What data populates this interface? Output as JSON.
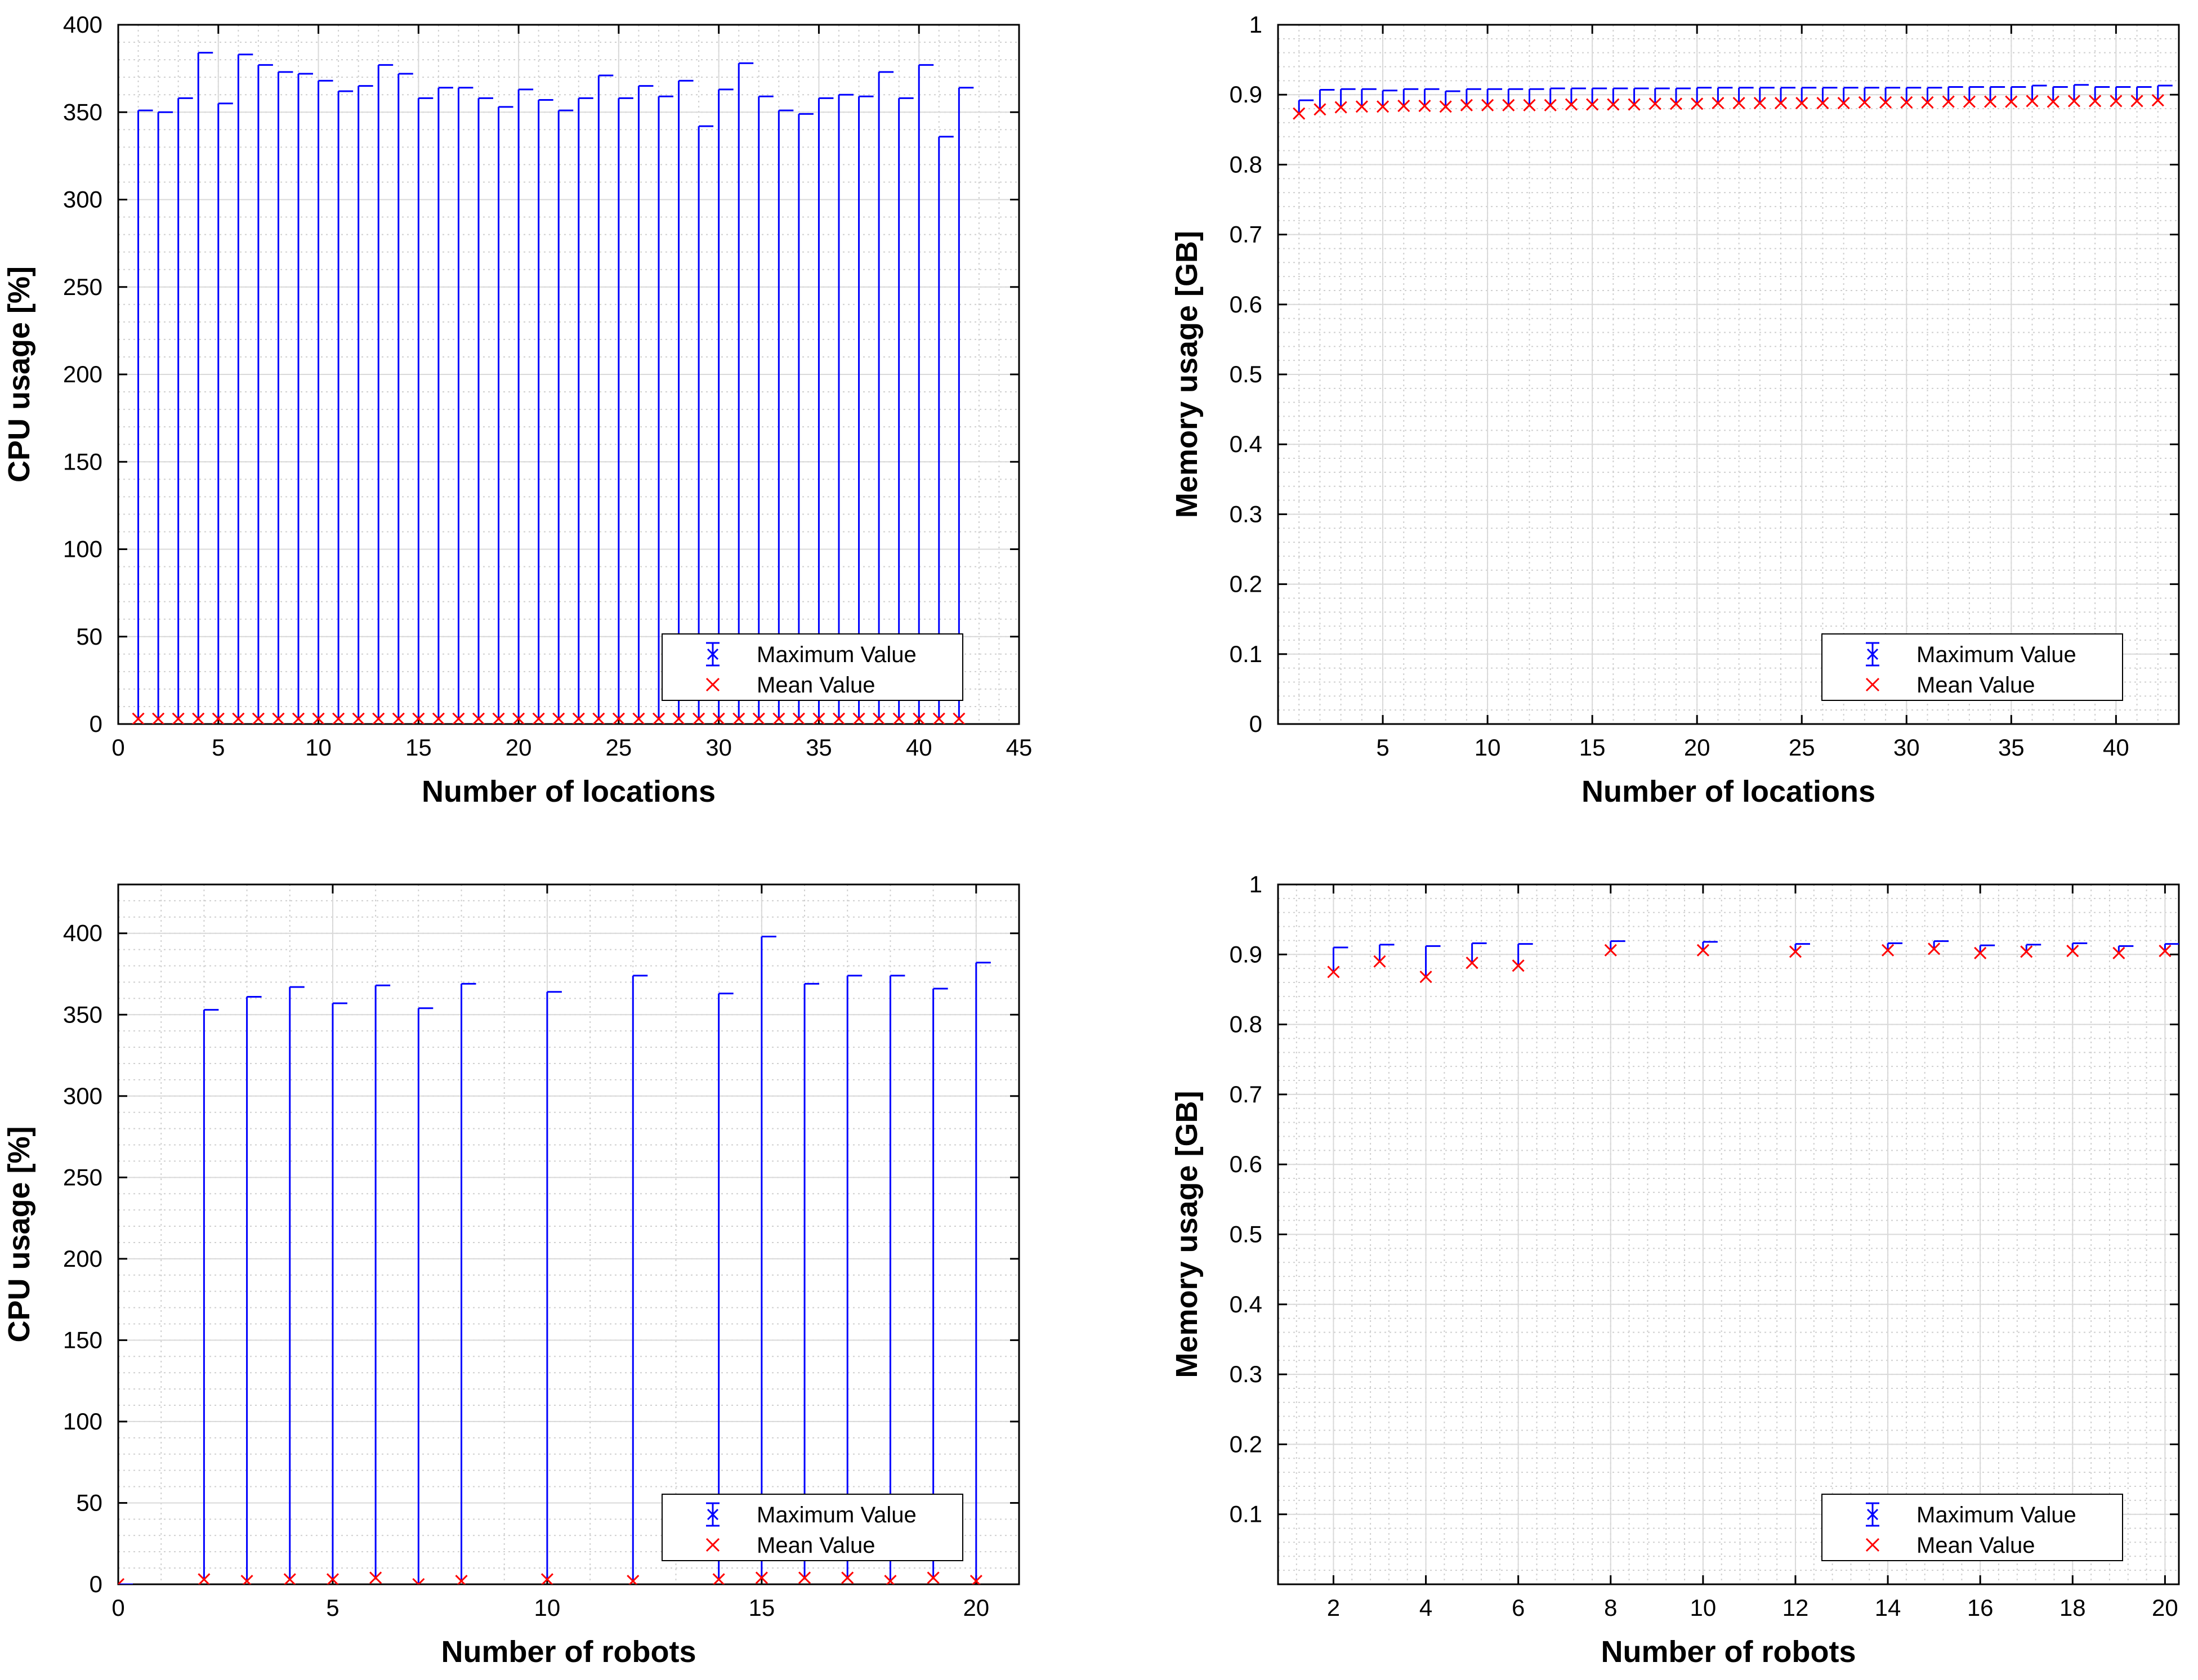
{
  "colors": {
    "max_series": "#0000ff",
    "mean_series": "#ff0000",
    "grid": "#cfcfcf",
    "axis": "#000000"
  },
  "chart_data": [
    {
      "type": "errorbar",
      "xlabel": "Number of locations",
      "ylabel": "CPU usage [%]",
      "xlim": [
        0,
        45
      ],
      "ylim": [
        0,
        400
      ],
      "xticks": [
        0,
        5,
        10,
        15,
        20,
        25,
        30,
        35,
        40,
        45
      ],
      "yticks": [
        0,
        50,
        100,
        150,
        200,
        250,
        300,
        350,
        400
      ],
      "ytick_labels": [
        "0",
        "50",
        "100",
        "150",
        "200",
        "250",
        "300",
        "350",
        "400"
      ],
      "legend": {
        "position": "bottom-right",
        "entries": [
          "Maximum Value",
          "Mean Value"
        ]
      },
      "series": [
        {
          "name": "Maximum Value",
          "x": [
            1,
            2,
            3,
            4,
            5,
            6,
            7,
            8,
            9,
            10,
            11,
            12,
            13,
            14,
            15,
            16,
            17,
            18,
            19,
            20,
            21,
            22,
            23,
            24,
            25,
            26,
            27,
            28,
            29,
            30,
            31,
            32,
            33,
            34,
            35,
            36,
            37,
            38,
            39,
            40,
            41,
            42
          ],
          "values": [
            351,
            350,
            358,
            384,
            355,
            383,
            377,
            373,
            372,
            368,
            362,
            365,
            377,
            372,
            358,
            364,
            364,
            358,
            353,
            363,
            357,
            351,
            358,
            371,
            358,
            365,
            359,
            368,
            342,
            363,
            378,
            359,
            351,
            349,
            358,
            360,
            359,
            373,
            358,
            377,
            336,
            364
          ]
        },
        {
          "name": "Mean Value",
          "x": [
            1,
            2,
            3,
            4,
            5,
            6,
            7,
            8,
            9,
            10,
            11,
            12,
            13,
            14,
            15,
            16,
            17,
            18,
            19,
            20,
            21,
            22,
            23,
            24,
            25,
            26,
            27,
            28,
            29,
            30,
            31,
            32,
            33,
            34,
            35,
            36,
            37,
            38,
            39,
            40,
            41,
            42
          ],
          "values": [
            3,
            3,
            3,
            3,
            3,
            3,
            3,
            3,
            3,
            3,
            3,
            3,
            3,
            3,
            3,
            3,
            3,
            3,
            3,
            3,
            3,
            3,
            3,
            3,
            3,
            3,
            3,
            3,
            3,
            3,
            3,
            3,
            3,
            3,
            3,
            3,
            3,
            3,
            3,
            3,
            3,
            3
          ]
        }
      ]
    },
    {
      "type": "errorbar",
      "xlabel": "Number of locations",
      "ylabel": "Memory usage [GB]",
      "xlim": [
        0,
        43
      ],
      "ylim": [
        0,
        1
      ],
      "xticks": [
        5,
        10,
        15,
        20,
        25,
        30,
        35,
        40
      ],
      "yticks": [
        0,
        0.1,
        0.2,
        0.3,
        0.4,
        0.5,
        0.6,
        0.7,
        0.8,
        0.9,
        1
      ],
      "ytick_labels": [
        "0",
        "0.1",
        "0.2",
        "0.3",
        "0.4",
        "0.5",
        "0.6",
        "0.7",
        "0.8",
        "0.9",
        "1"
      ],
      "legend": {
        "position": "bottom-right",
        "entries": [
          "Maximum Value",
          "Mean Value"
        ]
      },
      "series": [
        {
          "name": "Maximum Value",
          "x": [
            1,
            2,
            3,
            4,
            5,
            6,
            7,
            8,
            9,
            10,
            11,
            12,
            13,
            14,
            15,
            16,
            17,
            18,
            19,
            20,
            21,
            22,
            23,
            24,
            25,
            26,
            27,
            28,
            29,
            30,
            31,
            32,
            33,
            34,
            35,
            36,
            37,
            38,
            39,
            40,
            41,
            42
          ],
          "values": [
            0.892,
            0.907,
            0.908,
            0.908,
            0.906,
            0.908,
            0.908,
            0.905,
            0.908,
            0.908,
            0.908,
            0.908,
            0.909,
            0.909,
            0.909,
            0.909,
            0.909,
            0.909,
            0.909,
            0.91,
            0.91,
            0.91,
            0.91,
            0.91,
            0.91,
            0.91,
            0.91,
            0.91,
            0.91,
            0.91,
            0.91,
            0.911,
            0.911,
            0.911,
            0.911,
            0.913,
            0.911,
            0.914,
            0.911,
            0.911,
            0.911,
            0.913
          ]
        },
        {
          "name": "Mean Value",
          "x": [
            1,
            2,
            3,
            4,
            5,
            6,
            7,
            8,
            9,
            10,
            11,
            12,
            13,
            14,
            15,
            16,
            17,
            18,
            19,
            20,
            21,
            22,
            23,
            24,
            25,
            26,
            27,
            28,
            29,
            30,
            31,
            32,
            33,
            34,
            35,
            36,
            37,
            38,
            39,
            40,
            41,
            42
          ],
          "values": [
            0.873,
            0.879,
            0.882,
            0.883,
            0.883,
            0.884,
            0.884,
            0.883,
            0.885,
            0.885,
            0.885,
            0.885,
            0.885,
            0.886,
            0.886,
            0.886,
            0.886,
            0.887,
            0.887,
            0.887,
            0.888,
            0.888,
            0.888,
            0.888,
            0.888,
            0.888,
            0.888,
            0.889,
            0.889,
            0.889,
            0.889,
            0.89,
            0.89,
            0.89,
            0.89,
            0.891,
            0.89,
            0.891,
            0.891,
            0.891,
            0.891,
            0.892
          ]
        }
      ]
    },
    {
      "type": "errorbar",
      "xlabel": "Number of robots",
      "ylabel": "CPU usage [%]",
      "xlim": [
        0,
        21
      ],
      "ylim": [
        0,
        430
      ],
      "xticks": [
        0,
        5,
        10,
        15,
        20
      ],
      "yticks": [
        0,
        50,
        100,
        150,
        200,
        250,
        300,
        350,
        400
      ],
      "ytick_labels": [
        "0",
        "50",
        "100",
        "150",
        "200",
        "250",
        "300",
        "350",
        "400"
      ],
      "legend": {
        "position": "bottom-right",
        "entries": [
          "Maximum Value",
          "Mean Value"
        ]
      },
      "series": [
        {
          "name": "Maximum Value",
          "x": [
            0,
            2,
            3,
            4,
            5,
            6,
            7,
            8,
            10,
            12,
            14,
            15,
            16,
            17,
            18,
            19,
            20
          ],
          "values": [
            0,
            353,
            361,
            367,
            357,
            368,
            354,
            369,
            364,
            374,
            363,
            398,
            369,
            374,
            374,
            366,
            382
          ]
        },
        {
          "name": "Mean Value",
          "x": [
            0,
            2,
            3,
            4,
            5,
            6,
            7,
            8,
            10,
            12,
            14,
            15,
            16,
            17,
            18,
            19,
            20
          ],
          "values": [
            0,
            3,
            2,
            3,
            3,
            4,
            0,
            2,
            3,
            2,
            3,
            4,
            4,
            4,
            2,
            4,
            2
          ]
        }
      ]
    },
    {
      "type": "errorbar",
      "xlabel": "Number of robots",
      "ylabel": "Memory usage [GB]",
      "xlim": [
        0.8,
        20.3
      ],
      "ylim": [
        0,
        1
      ],
      "xticks": [
        2,
        4,
        6,
        8,
        10,
        12,
        14,
        16,
        18,
        20
      ],
      "yticks": [
        0.1,
        0.2,
        0.3,
        0.4,
        0.5,
        0.6,
        0.7,
        0.8,
        0.9,
        1
      ],
      "ytick_labels": [
        "0.1",
        "0.2",
        "0.3",
        "0.4",
        "0.5",
        "0.6",
        "0.7",
        "0.8",
        "0.9",
        "1"
      ],
      "legend": {
        "position": "bottom-right",
        "entries": [
          "Maximum Value",
          "Mean Value"
        ]
      },
      "series": [
        {
          "name": "Maximum Value",
          "x": [
            2,
            3,
            4,
            5,
            6,
            8,
            10,
            12,
            14,
            15,
            16,
            17,
            18,
            19,
            20
          ],
          "values": [
            0.91,
            0.914,
            0.912,
            0.916,
            0.915,
            0.919,
            0.918,
            0.915,
            0.916,
            0.919,
            0.913,
            0.914,
            0.916,
            0.912,
            0.915
          ]
        },
        {
          "name": "Mean Value",
          "x": [
            2,
            3,
            4,
            5,
            6,
            8,
            10,
            12,
            14,
            15,
            16,
            17,
            18,
            19,
            20
          ],
          "values": [
            0.875,
            0.89,
            0.868,
            0.888,
            0.884,
            0.906,
            0.906,
            0.904,
            0.906,
            0.908,
            0.902,
            0.904,
            0.905,
            0.902,
            0.905
          ]
        }
      ]
    }
  ]
}
